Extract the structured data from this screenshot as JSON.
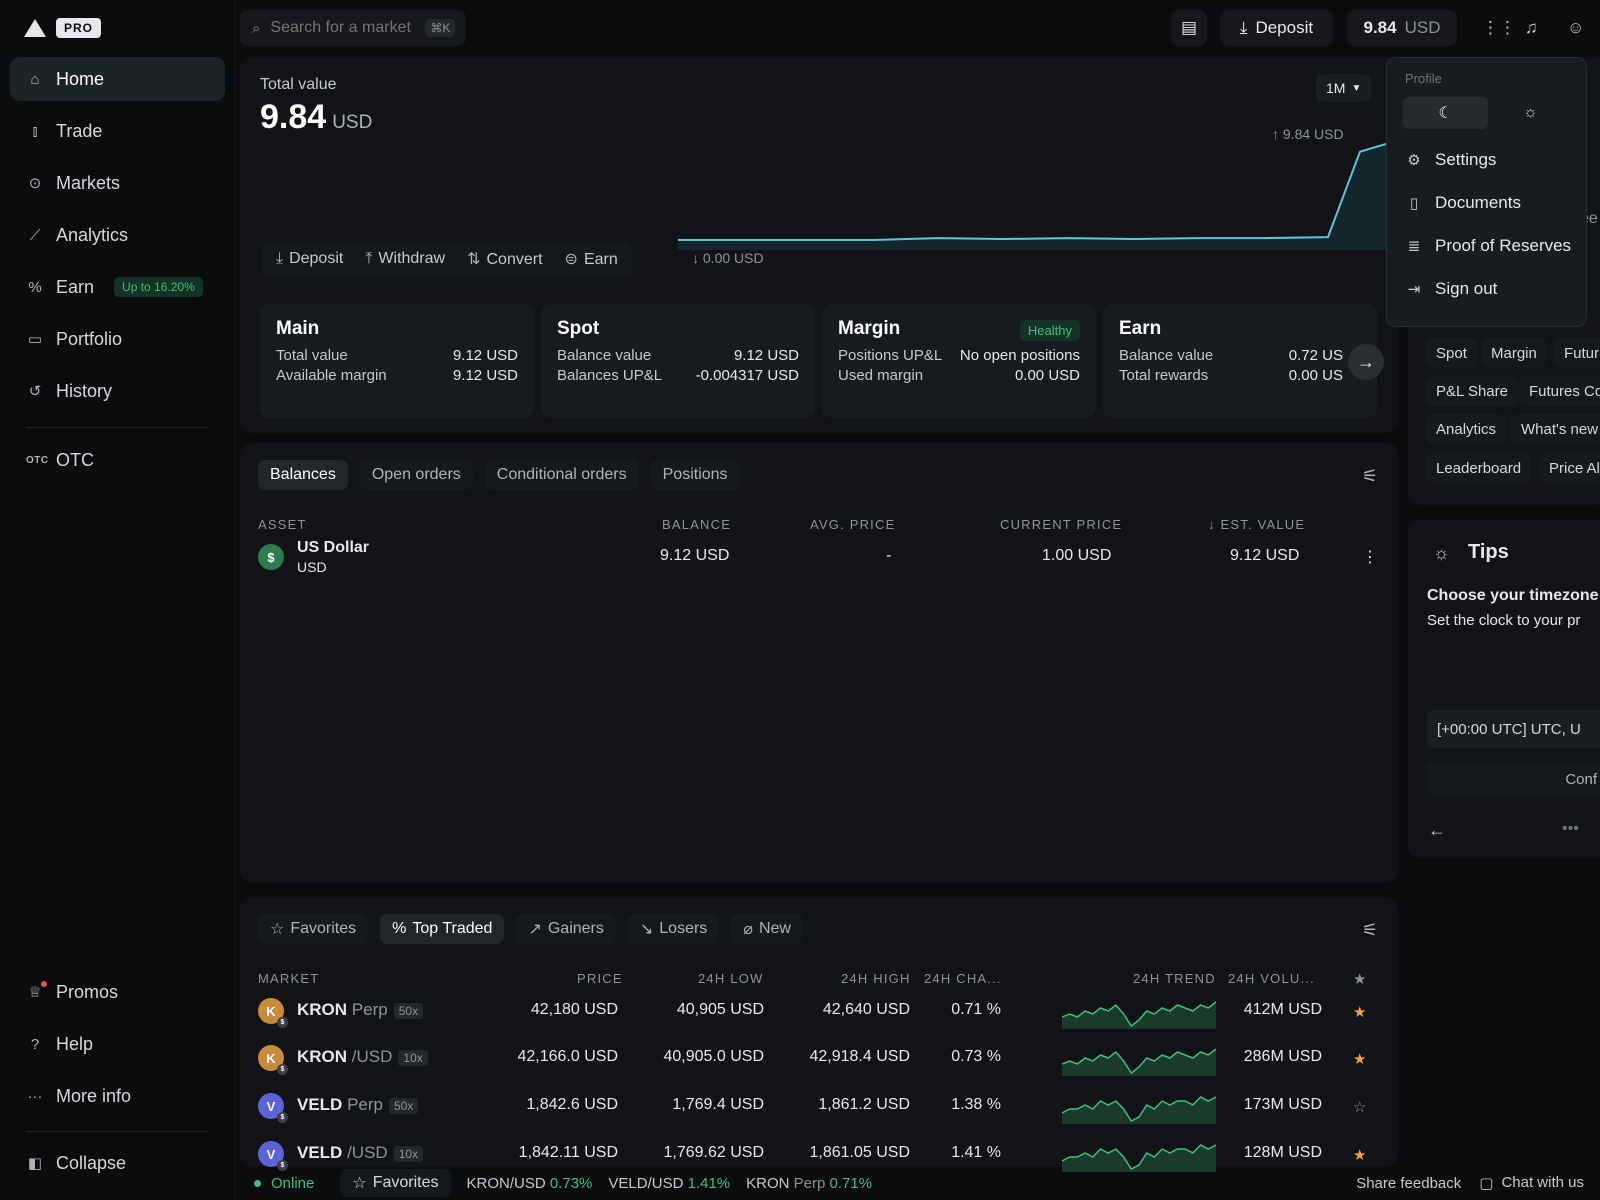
{
  "brand": {
    "badge": "PRO"
  },
  "sidebar": {
    "items": [
      {
        "label": "Home",
        "icon": "home-icon"
      },
      {
        "label": "Trade",
        "icon": "candles-icon"
      },
      {
        "label": "Markets",
        "icon": "markets-icon"
      },
      {
        "label": "Analytics",
        "icon": "analytics-icon"
      },
      {
        "label": "Earn",
        "icon": "percent-icon",
        "badge": "Up to 16.20%"
      },
      {
        "label": "Portfolio",
        "icon": "wallet-icon"
      },
      {
        "label": "History",
        "icon": "history-icon"
      },
      {
        "label": "OTC",
        "icon": "otc-icon"
      }
    ],
    "bottom": [
      {
        "label": "Promos",
        "icon": "trophy-icon"
      },
      {
        "label": "Help",
        "icon": "help-icon"
      },
      {
        "label": "More info",
        "icon": "more-icon"
      },
      {
        "label": "Collapse",
        "icon": "collapse-icon"
      }
    ],
    "otc_glyph": "OTC"
  },
  "topbar": {
    "search_placeholder": "Search for a market",
    "search_shortcut": "⌘K",
    "deposit_label": "Deposit",
    "balance_value": "9.84",
    "balance_unit": "USD"
  },
  "overview": {
    "label": "Total value",
    "value": "9.84",
    "unit": "USD",
    "period": "1M",
    "chart_high": "↑ 9.84 USD",
    "chart_low": "↓ 0.00 USD",
    "actions": [
      "Deposit",
      "Withdraw",
      "Convert",
      "Earn"
    ],
    "trend": [
      0.0,
      0.0,
      0.0,
      0.0,
      0.02,
      0.01,
      0.02,
      0.01,
      0.02,
      0.02,
      0.03,
      0.92,
      1.0
    ]
  },
  "accounts": [
    {
      "title": "Main",
      "rows": [
        [
          "Total value",
          "9.12 USD"
        ],
        [
          "Available margin",
          "9.12 USD"
        ]
      ]
    },
    {
      "title": "Spot",
      "rows": [
        [
          "Balance value",
          "9.12 USD"
        ],
        [
          "Balances UP&L",
          "-0.004317 USD"
        ]
      ]
    },
    {
      "title": "Margin",
      "badge": "Healthy",
      "rows": [
        [
          "Positions UP&L",
          "No open positions"
        ],
        [
          "Used margin",
          "0.00 USD"
        ]
      ]
    },
    {
      "title": "Earn",
      "rows": [
        [
          "Balance value",
          "0.72 US"
        ],
        [
          "Total rewards",
          "0.00 US"
        ]
      ]
    }
  ],
  "balances": {
    "tabs": [
      "Balances",
      "Open orders",
      "Conditional orders",
      "Positions"
    ],
    "headers": [
      "ASSET",
      "BALANCE",
      "AVG. PRICE",
      "CURRENT PRICE",
      "↓ EST. VALUE"
    ],
    "rows": [
      {
        "glyph": "$",
        "name": "US Dollar",
        "symbol": "USD",
        "balance": "9.12 USD",
        "avg": "-",
        "current": "1.00 USD",
        "est": "9.12 USD"
      }
    ]
  },
  "markets": {
    "tabs": [
      "Favorites",
      "Top Traded",
      "Gainers",
      "Losers",
      "New"
    ],
    "headers": [
      "MARKET",
      "PRICE",
      "24H LOW",
      "24H HIGH",
      "24H CHA...",
      "24H TREND",
      "24H VOLU..."
    ],
    "rows": [
      {
        "glyph": "K",
        "sub": "$",
        "color": "#c98a3c",
        "name": "KRON",
        "pair": "Perp",
        "lev": "50x",
        "price": "42,180 USD",
        "low": "40,905 USD",
        "high": "42,640 USD",
        "chg": "0.71 %",
        "vol": "412M USD",
        "fav": true,
        "trend": [
          5,
          6,
          5,
          7,
          6,
          8,
          7,
          9,
          6,
          2,
          4,
          7,
          6,
          8,
          7,
          9,
          8,
          7,
          9,
          8,
          10
        ]
      },
      {
        "glyph": "K",
        "sub": "$",
        "color": "#c98a3c",
        "name": "KRON",
        "pair": "/USD",
        "lev": "10x",
        "price": "42,166.0 USD",
        "low": "40,905.0 USD",
        "high": "42,918.4 USD",
        "chg": "0.73 %",
        "vol": "286M USD",
        "fav": true,
        "trend": [
          5,
          6,
          5,
          7,
          6,
          8,
          7,
          9,
          6,
          2,
          4,
          7,
          6,
          8,
          7,
          9,
          8,
          7,
          9,
          8,
          10
        ]
      },
      {
        "glyph": "V",
        "sub": "$",
        "color": "#5b63d6",
        "name": "VELD",
        "pair": "Perp",
        "lev": "50x",
        "price": "1,842.6 USD",
        "low": "1,769.4 USD",
        "high": "1,861.2 USD",
        "chg": "1.38 %",
        "vol": "173M USD",
        "fav": false,
        "trend": [
          5,
          6,
          6,
          7,
          6,
          8,
          7,
          8,
          6,
          3,
          4,
          7,
          6,
          8,
          7,
          8,
          8,
          7,
          9,
          8,
          9
        ]
      },
      {
        "glyph": "V",
        "sub": "$",
        "color": "#5b63d6",
        "name": "VELD",
        "pair": "/USD",
        "lev": "10x",
        "price": "1,842.11 USD",
        "low": "1,769.62 USD",
        "high": "1,861.05 USD",
        "chg": "1.41 %",
        "vol": "128M USD",
        "fav": true,
        "trend": [
          5,
          6,
          6,
          7,
          6,
          8,
          7,
          8,
          6,
          3,
          4,
          7,
          6,
          8,
          7,
          8,
          8,
          7,
          9,
          8,
          9
        ]
      }
    ]
  },
  "profile_menu": {
    "label": "Profile",
    "items": [
      {
        "label": "Settings",
        "icon": "gear-icon"
      },
      {
        "label": "Documents",
        "icon": "document-icon"
      },
      {
        "label": "Proof of Reserves",
        "icon": "reserves-icon"
      },
      {
        "label": "Sign out",
        "icon": "sign-out-icon"
      }
    ]
  },
  "right": {
    "chips": [
      "Spot",
      "Margin",
      "Futur",
      "P&L Share",
      "Futures Co",
      "Analytics",
      "What's new",
      "Leaderboard",
      "Price Al"
    ],
    "partial": "ee",
    "tips_title": "Tips",
    "tip_heading": "Choose your timezone",
    "tip_body": "Set the clock to your pr",
    "tz_value": "[+00:00 UTC] UTC, U",
    "confirm": "Conf"
  },
  "statusbar": {
    "online": "Online",
    "favorites": "Favorites",
    "tickers": [
      {
        "name": "KRON/USD",
        "chg": "0.73%"
      },
      {
        "name": "VELD/USD",
        "chg": "1.41%"
      },
      {
        "name": "KRON",
        "sub": "Perp",
        "chg": "0.71%"
      }
    ],
    "feedback": "Share feedback",
    "chat": "Chat with us"
  }
}
